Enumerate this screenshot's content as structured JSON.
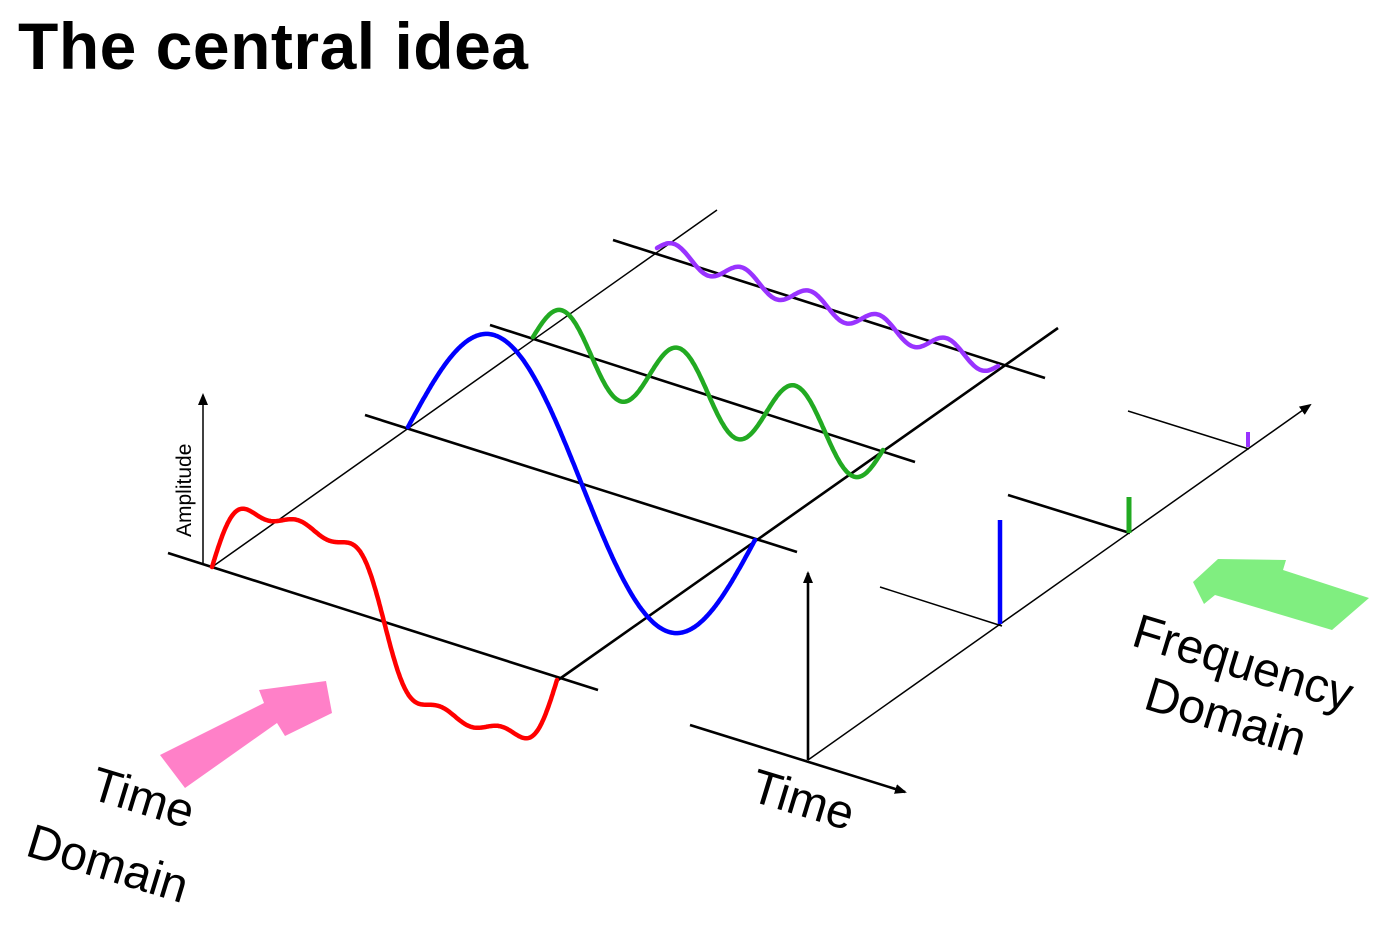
{
  "title": "The central idea",
  "labels": {
    "amplitude": "Amplitude",
    "time": "Time",
    "time_domain_line1": "Time",
    "time_domain_line2": "Domain",
    "frequency_domain_line1": "Frequency",
    "frequency_domain_line2": "Domain"
  },
  "colors": {
    "composite": "#ff0000",
    "fundamental": "#0000ff",
    "third_harmonic": "#22aa22",
    "fifth_harmonic": "#9933ff",
    "time_domain_arrow": "#ff80c8",
    "frequency_domain_arrow": "#80ee80",
    "axis": "#000000"
  }
}
